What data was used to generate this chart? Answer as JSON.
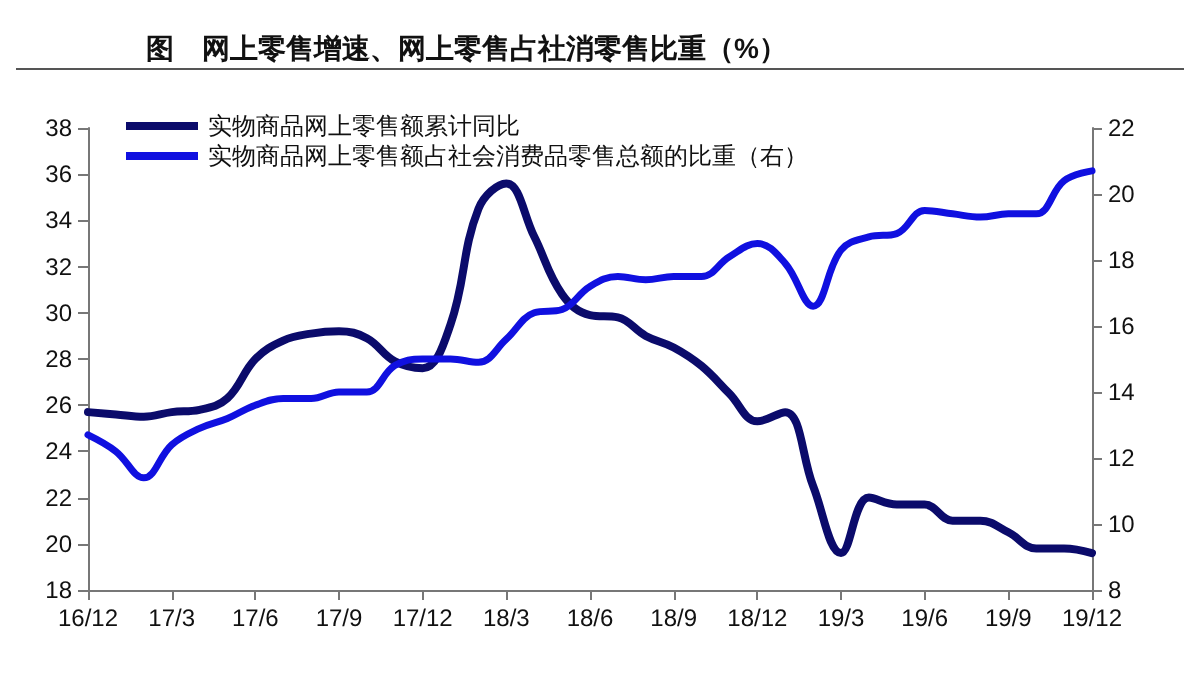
{
  "chart_data": {
    "type": "line",
    "title": "图　网上零售增速、网上零售占社消零售比重（%）",
    "categories": [
      "16/12",
      null,
      null,
      "17/3",
      null,
      null,
      "17/6",
      null,
      null,
      "17/9",
      null,
      null,
      "17/12",
      null,
      null,
      "18/3",
      null,
      null,
      "18/6",
      null,
      null,
      "18/9",
      null,
      null,
      "18/12",
      null,
      null,
      "19/3",
      null,
      null,
      "19/6",
      null,
      null,
      "19/9",
      null,
      null,
      "19/12"
    ],
    "series": [
      {
        "name": "实物商品网上零售额累计同比",
        "color": "#0b0b6b",
        "values": [
          25.7,
          25.6,
          25.5,
          25.7,
          25.8,
          26.3,
          28.0,
          28.8,
          29.1,
          29.2,
          28.9,
          27.9,
          27.6,
          29.5,
          34.5,
          35.6,
          33.3,
          30.8,
          29.9,
          29.8,
          29.0,
          28.5,
          27.7,
          26.5,
          25.3,
          25.7,
          22.5,
          19.6,
          22.0,
          21.7,
          21.7,
          21.0,
          21.0,
          20.5,
          19.8,
          19.8,
          19.6
        ]
      },
      {
        "name": "实物商品网上零售额占社会消费品零售总额的比重（右）",
        "color": "#1010e0",
        "axis": "y2",
        "values": [
          12.7,
          12.2,
          11.4,
          12.4,
          12.9,
          13.2,
          13.6,
          13.8,
          13.8,
          14.0,
          14.0,
          14.8,
          15.0,
          15.0,
          14.9,
          15.6,
          16.4,
          16.5,
          17.2,
          17.5,
          17.4,
          17.5,
          17.5,
          18.1,
          18.5,
          17.9,
          16.6,
          18.3,
          18.7,
          18.8,
          19.5,
          19.4,
          19.3,
          19.4,
          19.4,
          20.4,
          20.7
        ]
      }
    ],
    "ylim": [
      18,
      38
    ],
    "yticks": [
      18,
      20,
      22,
      24,
      26,
      28,
      30,
      32,
      34,
      36,
      38
    ],
    "y2lim": [
      8,
      22
    ],
    "y2ticks": [
      8,
      10,
      12,
      14,
      16,
      18,
      20,
      22
    ],
    "grid": false,
    "legend": "top left",
    "marker": "none",
    "line_style": "solid"
  }
}
